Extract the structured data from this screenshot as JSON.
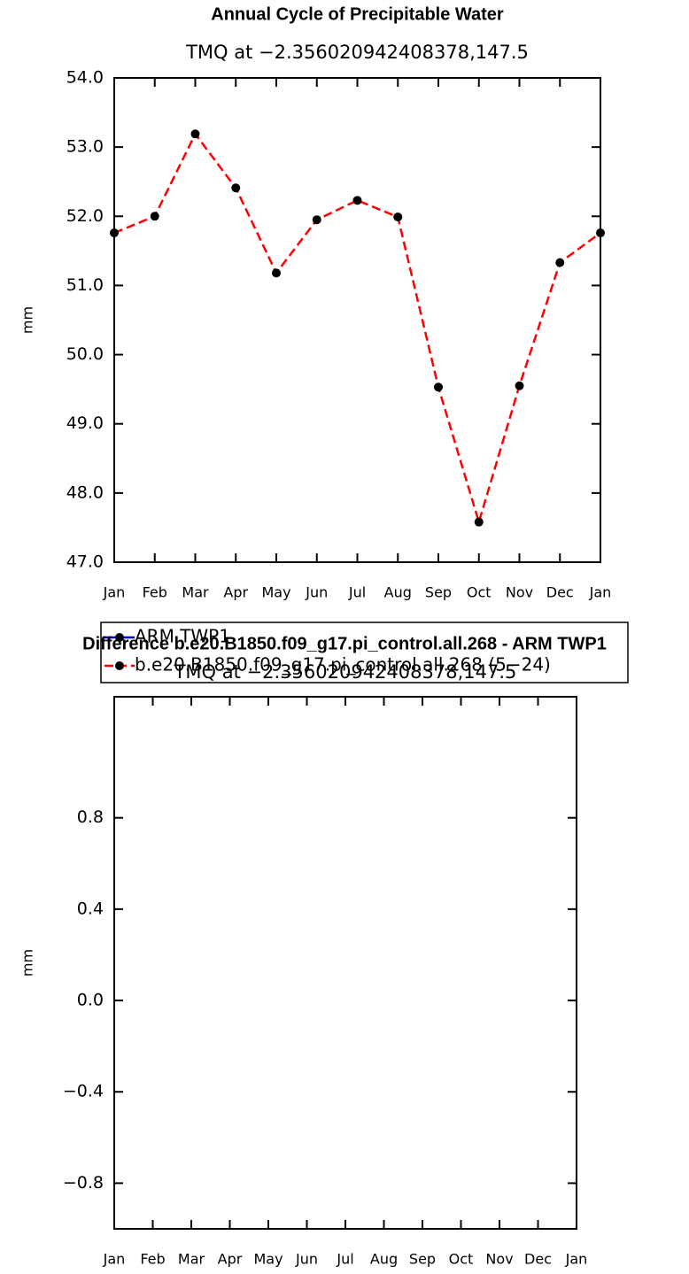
{
  "chart_data": [
    {
      "type": "line",
      "title": "Annual Cycle of Precipitable Water",
      "subtitle": "TMQ at −2.356020942408378,147.5",
      "ylabel": "mm",
      "categories": [
        "Jan",
        "Feb",
        "Mar",
        "Apr",
        "May",
        "Jun",
        "Jul",
        "Aug",
        "Sep",
        "Oct",
        "Nov",
        "Dec",
        "Jan"
      ],
      "series": [
        {
          "name": "ARM TWP1",
          "color": "#0000ff",
          "dash": false,
          "values": [
            null,
            null,
            null,
            null,
            null,
            null,
            null,
            null,
            null,
            null,
            null,
            null,
            null
          ]
        },
        {
          "name": "b.e20.B1850.f09_g17.pi_control.all.268 (5−24)",
          "color": "#ff0000",
          "dash": true,
          "values": [
            51.76,
            52.0,
            53.19,
            52.41,
            51.18,
            51.95,
            52.23,
            51.99,
            49.53,
            47.58,
            49.55,
            51.33,
            51.76
          ]
        }
      ],
      "ylim": [
        47,
        54
      ],
      "yticks": [
        {
          "value": 47,
          "label": "47.0"
        },
        {
          "value": 48,
          "label": "48.0"
        },
        {
          "value": 49,
          "label": "49.0"
        },
        {
          "value": 50,
          "label": "50.0"
        },
        {
          "value": 51,
          "label": "51.0"
        },
        {
          "value": 52,
          "label": "52.0"
        },
        {
          "value": 53,
          "label": "53.0"
        },
        {
          "value": 54,
          "label": "54.0"
        }
      ],
      "legend": "below"
    },
    {
      "type": "line",
      "title": "Difference b.e20.B1850.f09_g17.pi_control.all.268 - ARM TWP1",
      "subtitle": "TMQ at −2.356020942408378,147.5",
      "ylabel": "mm",
      "categories": [
        "Jan",
        "Feb",
        "Mar",
        "Apr",
        "May",
        "Jun",
        "Jul",
        "Aug",
        "Sep",
        "Oct",
        "Nov",
        "Dec",
        "Jan"
      ],
      "series": [],
      "ylim": [
        -1,
        1.33
      ],
      "yticks": [
        {
          "value": -0.8,
          "label": "−0.8"
        },
        {
          "value": -0.4,
          "label": "−0.4"
        },
        {
          "value": 0,
          "label": "0.0"
        },
        0.4,
        0.8
      ]
    }
  ]
}
